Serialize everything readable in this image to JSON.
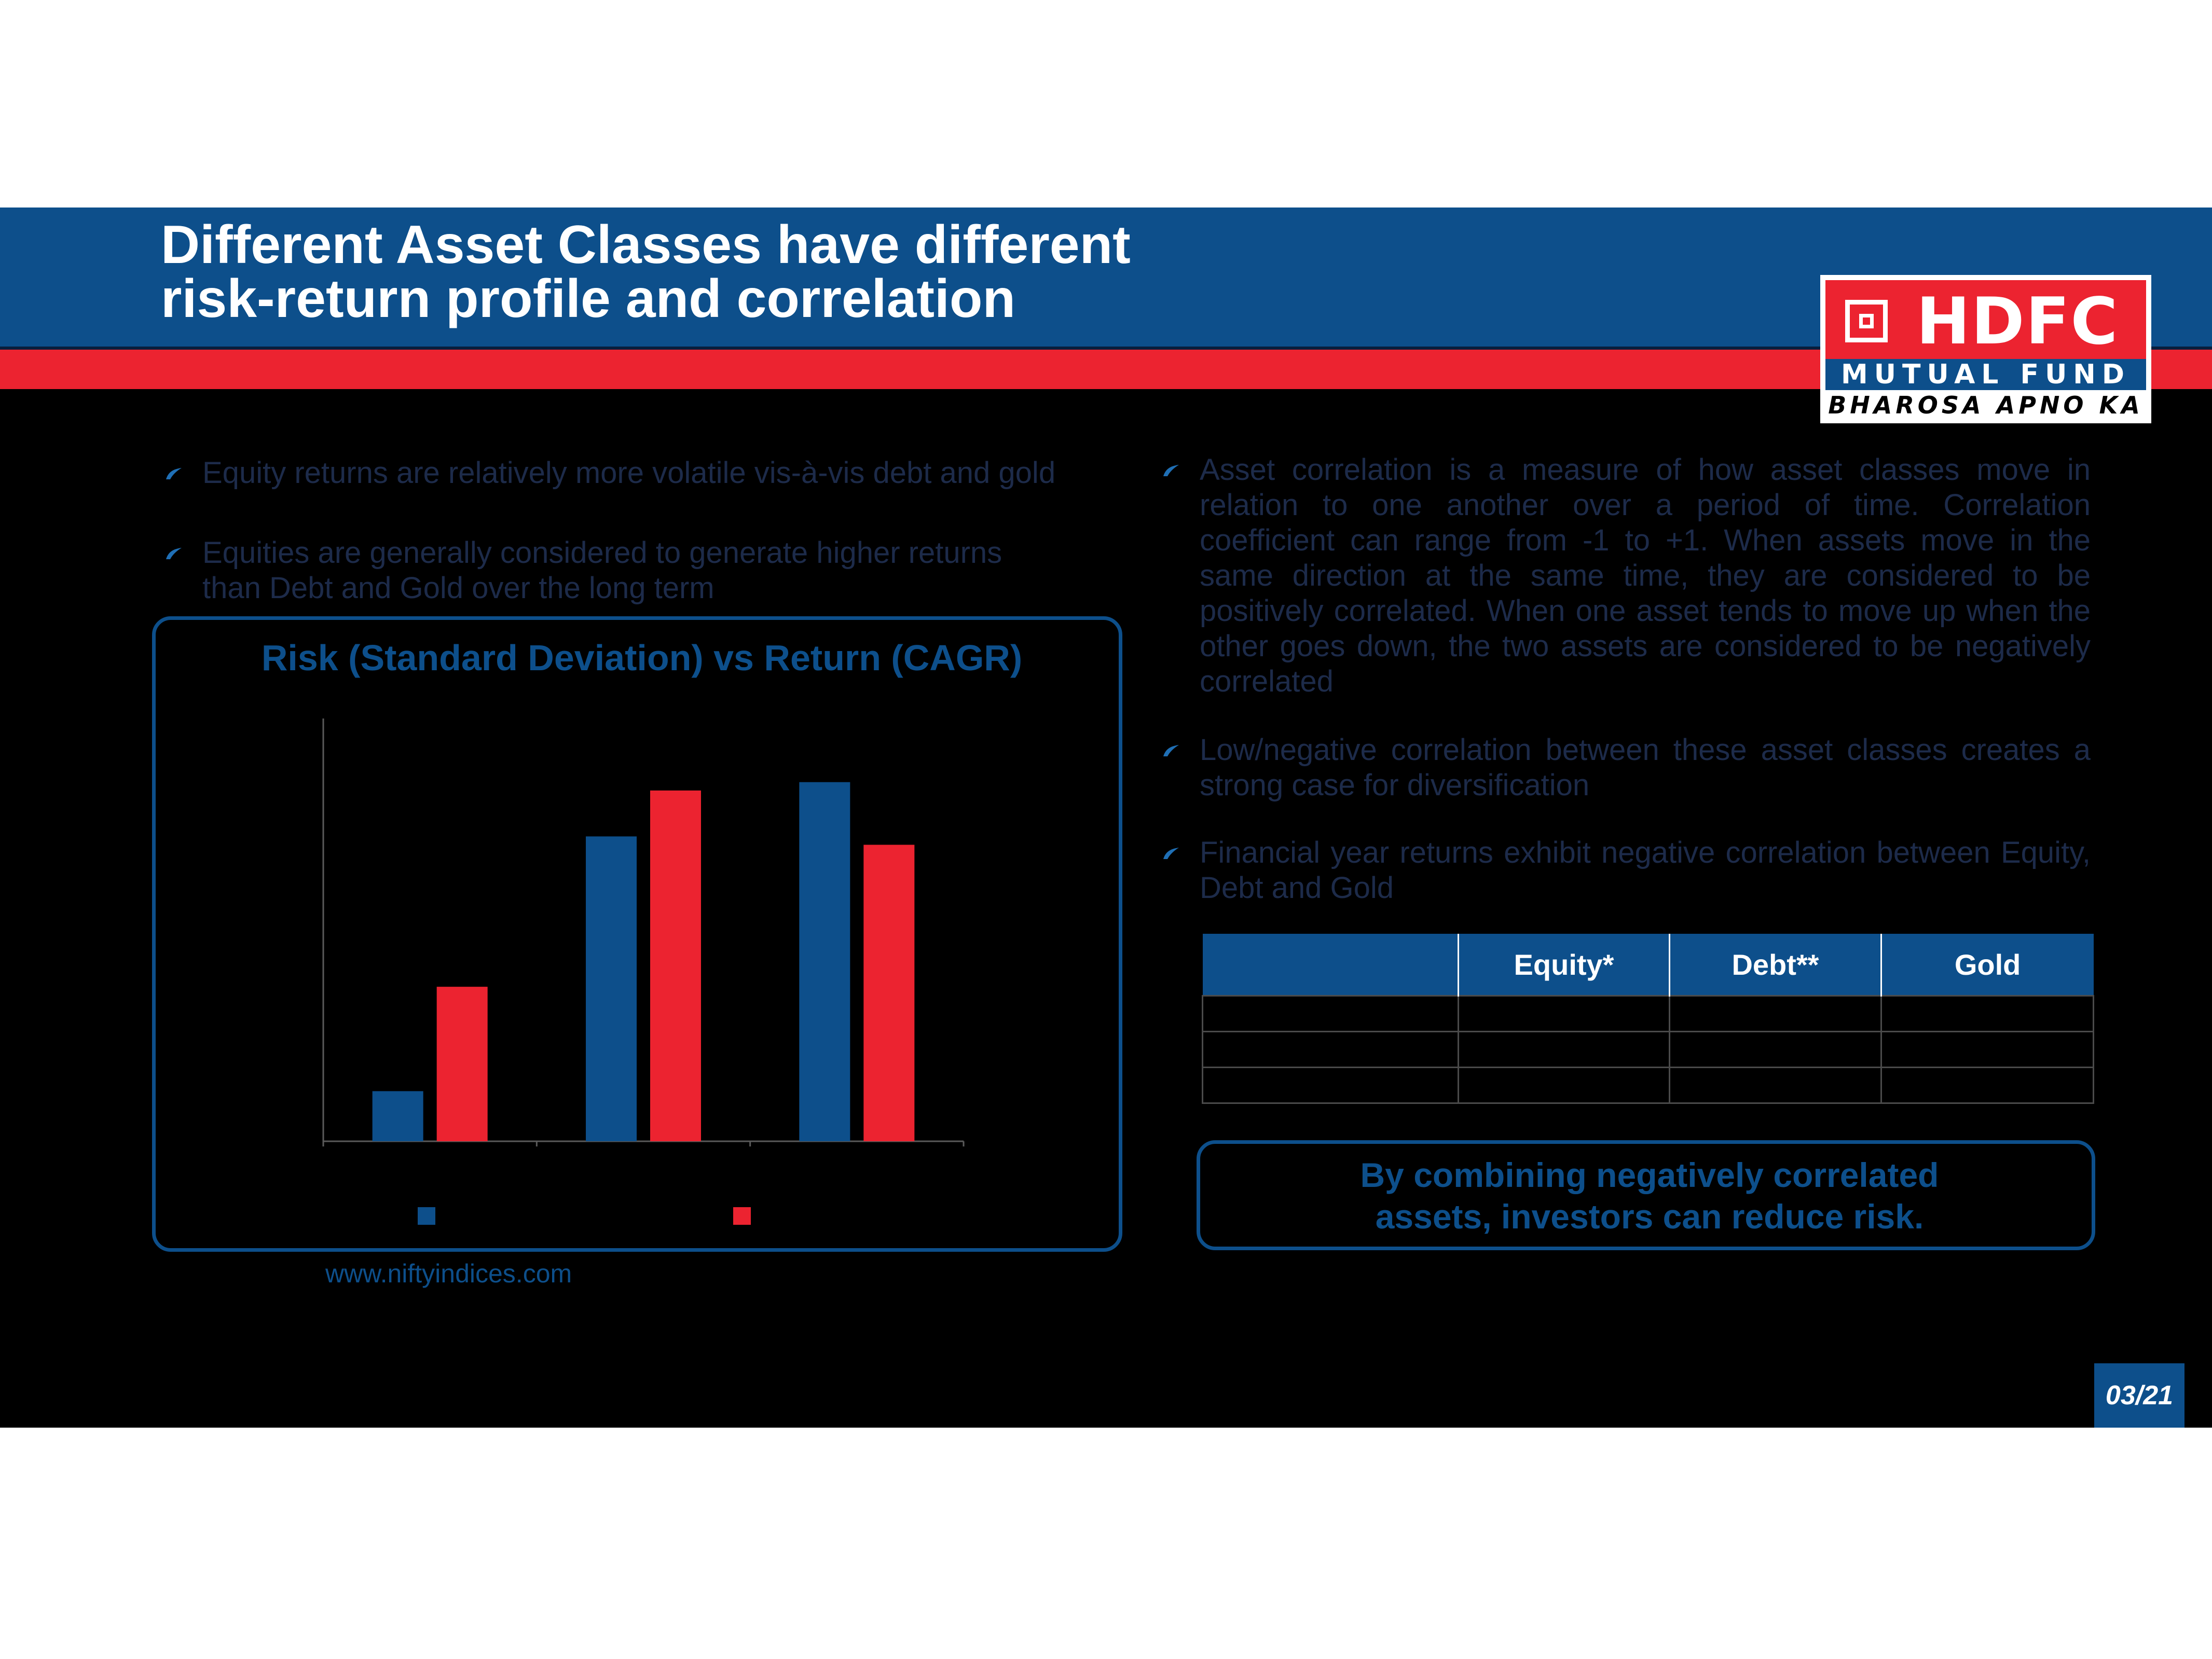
{
  "slide": {
    "title_line1": "Different Asset Classes have different",
    "title_line2": "risk-return profile and correlation",
    "page_number": "03/21"
  },
  "logo": {
    "brand": "HDFC",
    "line2": "MUTUAL FUND",
    "tagline": "BHAROSA APNO KA"
  },
  "left_bullets": [
    "Equity returns are relatively more volatile vis-à-vis debt and gold",
    "Equities are generally considered to generate higher returns than Debt and Gold over the long term"
  ],
  "right_bullets": [
    "Asset correlation is a measure of how asset classes move in relation to one another over a period of time. Correlation coefficient can range from -1 to +1. When assets move in the same direction at the same time, they are considered to be positively correlated. When one asset tends to move up when the other goes down, the two assets are considered to be negatively correlated",
    "Low/negative correlation between these asset classes creates a strong case for diversification",
    "Financial year returns exhibit negative correlation between Equity, Debt and Gold"
  ],
  "chart_data": {
    "type": "bar",
    "title": "Risk (Standard Deviation) vs Return (CAGR)",
    "categories": [
      "",
      "",
      ""
    ],
    "series": [
      {
        "values": [
          12,
          73,
          86
        ],
        "color": "#0d4f8b"
      },
      {
        "values": [
          37,
          84,
          71
        ],
        "color": "#ec2330"
      }
    ],
    "ylim": [
      0,
      100
    ],
    "legend_position": "bottom",
    "grid": false
  },
  "source": "www.niftyindices.com",
  "table": {
    "headers": [
      "",
      "Equity*",
      "Debt**",
      "Gold"
    ],
    "rows": [
      [
        "",
        "",
        "",
        ""
      ],
      [
        "",
        "",
        "",
        ""
      ],
      [
        "",
        "",
        "",
        ""
      ]
    ]
  },
  "callout": {
    "line1": "By combining negatively correlated",
    "line2": "assets, investors can reduce risk."
  }
}
